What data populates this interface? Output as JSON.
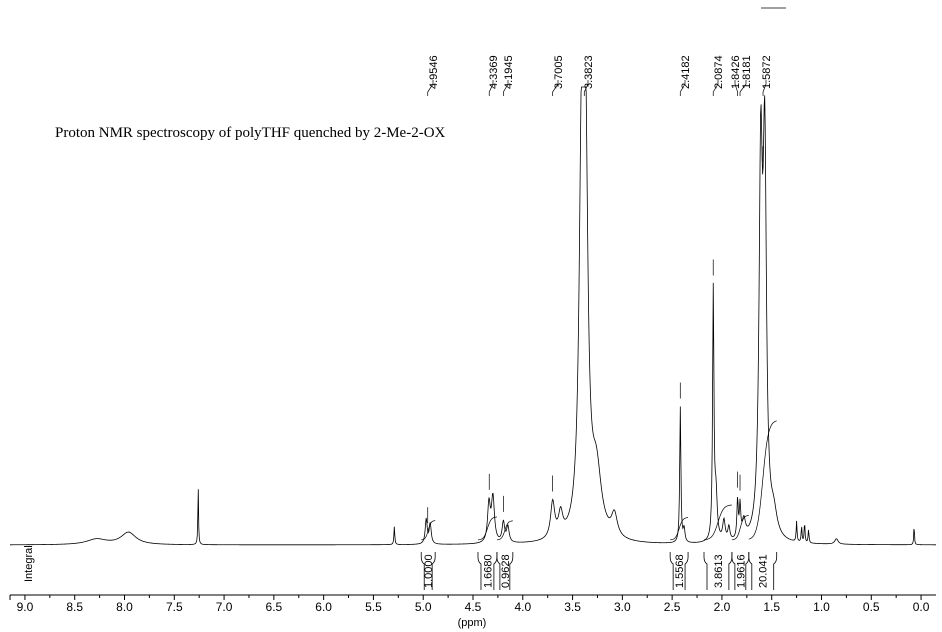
{
  "chart_data": {
    "type": "line",
    "title": "Proton NMR spectroscopy of polyTHF quenched by 2-Me-2-OX",
    "xlabel": "(ppm)",
    "integral_label": "Integral",
    "xlim": [
      9.15,
      -0.15
    ],
    "x_ticks": [
      "9.0",
      "8.5",
      "8.0",
      "7.5",
      "7.0",
      "6.5",
      "6.0",
      "5.5",
      "5.0",
      "4.5",
      "4.0",
      "3.5",
      "3.0",
      "2.5",
      "2.0",
      "1.5",
      "1.0",
      "0.5",
      "0.0"
    ],
    "peak_labels": [
      "4.9546",
      "4.3369",
      "4.1945",
      "3.7005",
      "3.3823",
      "2.4182",
      "2.0874",
      "1.8426",
      "1.8181",
      "1.5872"
    ],
    "integrals": [
      {
        "label": "1.0000",
        "from": 5.02,
        "to": 4.88
      },
      {
        "label": "1.6680",
        "from": 4.45,
        "to": 4.26
      },
      {
        "label": "0.9628",
        "from": 4.26,
        "to": 4.1
      },
      {
        "label": "1.5568",
        "from": 2.52,
        "to": 2.34
      },
      {
        "label": "3.8613",
        "from": 2.18,
        "to": 1.9
      },
      {
        "label": "1.9616",
        "from": 1.9,
        "to": 1.73
      },
      {
        "label": "20.041",
        "from": 1.73,
        "to": 1.45
      }
    ],
    "peaks": [
      {
        "ppm": 8.28,
        "height": 0.012,
        "width": 0.12
      },
      {
        "ppm": 7.96,
        "height": 0.027,
        "width": 0.09
      },
      {
        "ppm": 7.26,
        "height": 0.13,
        "width": 0.004
      },
      {
        "ppm": 5.29,
        "height": 0.04,
        "width": 0.005
      },
      {
        "ppm": 4.97,
        "height": 0.055,
        "width": 0.012
      },
      {
        "ppm": 4.93,
        "height": 0.045,
        "width": 0.012
      },
      {
        "ppm": 4.34,
        "height": 0.085,
        "width": 0.016
      },
      {
        "ppm": 4.3,
        "height": 0.1,
        "width": 0.018
      },
      {
        "ppm": 4.195,
        "height": 0.045,
        "width": 0.015
      },
      {
        "ppm": 4.15,
        "height": 0.035,
        "width": 0.015
      },
      {
        "ppm": 3.7,
        "height": 0.08,
        "width": 0.025
      },
      {
        "ppm": 3.62,
        "height": 0.05,
        "width": 0.025
      },
      {
        "ppm": 3.41,
        "height": 0.78,
        "width": 0.028
      },
      {
        "ppm": 3.37,
        "height": 0.8,
        "width": 0.028
      },
      {
        "ppm": 3.26,
        "height": 0.14,
        "width": 0.06
      },
      {
        "ppm": 3.08,
        "height": 0.05,
        "width": 0.035
      },
      {
        "ppm": 2.418,
        "height": 0.3,
        "width": 0.007
      },
      {
        "ppm": 2.38,
        "height": 0.03,
        "width": 0.01
      },
      {
        "ppm": 2.087,
        "height": 0.55,
        "width": 0.008
      },
      {
        "ppm": 2.06,
        "height": 0.1,
        "width": 0.015
      },
      {
        "ppm": 1.98,
        "height": 0.045,
        "width": 0.015
      },
      {
        "ppm": 1.93,
        "height": 0.03,
        "width": 0.012
      },
      {
        "ppm": 1.843,
        "height": 0.085,
        "width": 0.008
      },
      {
        "ppm": 1.818,
        "height": 0.07,
        "width": 0.008
      },
      {
        "ppm": 1.78,
        "height": 0.04,
        "width": 0.02
      },
      {
        "ppm": 1.61,
        "height": 0.8,
        "width": 0.02
      },
      {
        "ppm": 1.57,
        "height": 0.82,
        "width": 0.02
      },
      {
        "ppm": 1.48,
        "height": 0.05,
        "width": 0.04
      },
      {
        "ppm": 1.25,
        "height": 0.045,
        "width": 0.005
      },
      {
        "ppm": 1.2,
        "height": 0.035,
        "width": 0.005
      },
      {
        "ppm": 1.17,
        "height": 0.045,
        "width": 0.005
      },
      {
        "ppm": 1.13,
        "height": 0.03,
        "width": 0.005
      },
      {
        "ppm": 0.85,
        "height": 0.012,
        "width": 0.02
      },
      {
        "ppm": 0.07,
        "height": 0.045,
        "width": 0.004
      }
    ]
  }
}
